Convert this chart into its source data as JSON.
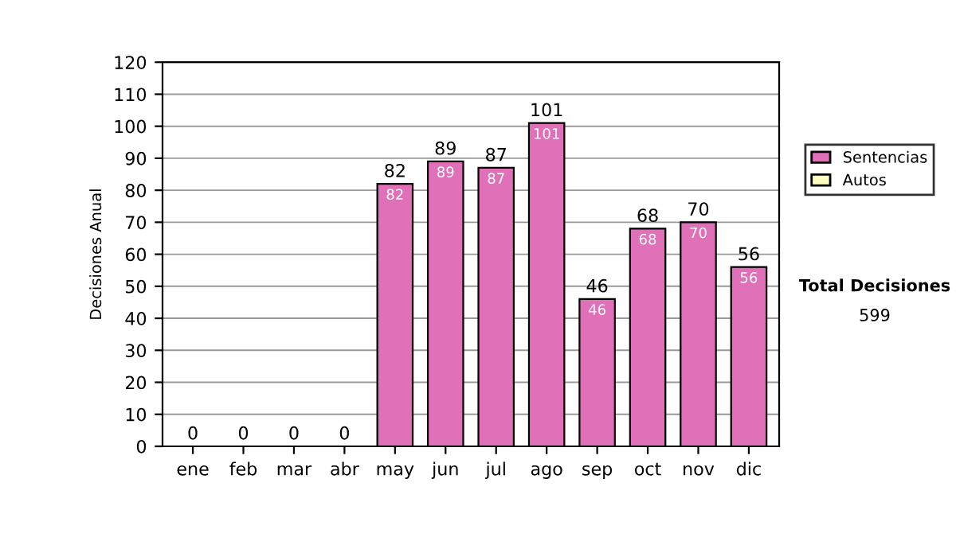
{
  "chart_data": {
    "type": "bar",
    "stacked": true,
    "ylabel": "Decisiones Anual",
    "categories": [
      "ene",
      "feb",
      "mar",
      "abr",
      "may",
      "jun",
      "jul",
      "ago",
      "sep",
      "oct",
      "nov",
      "dic"
    ],
    "series": [
      {
        "name": "Sentencias",
        "color": "#e070b8",
        "values": [
          0,
          0,
          0,
          0,
          82,
          89,
          87,
          101,
          46,
          68,
          70,
          56
        ],
        "value_labels": [
          null,
          null,
          null,
          null,
          "82",
          "89",
          "87",
          "101",
          "46",
          "68",
          "70",
          "56"
        ]
      },
      {
        "name": "Autos",
        "color": "#ffffc0",
        "values": [
          0,
          0,
          0,
          0,
          0,
          0,
          0,
          0,
          0,
          0,
          0,
          0
        ]
      }
    ],
    "totals": [
      "0",
      "0",
      "0",
      "0",
      "82",
      "89",
      "87",
      "101",
      "46",
      "68",
      "70",
      "56"
    ],
    "ylim": [
      0,
      120
    ],
    "yticks": [
      0,
      10,
      20,
      30,
      40,
      50,
      60,
      70,
      80,
      90,
      100,
      110,
      120
    ],
    "grid": "y",
    "legend": "right",
    "annotations": [
      "Total Decisiones",
      "599"
    ]
  }
}
